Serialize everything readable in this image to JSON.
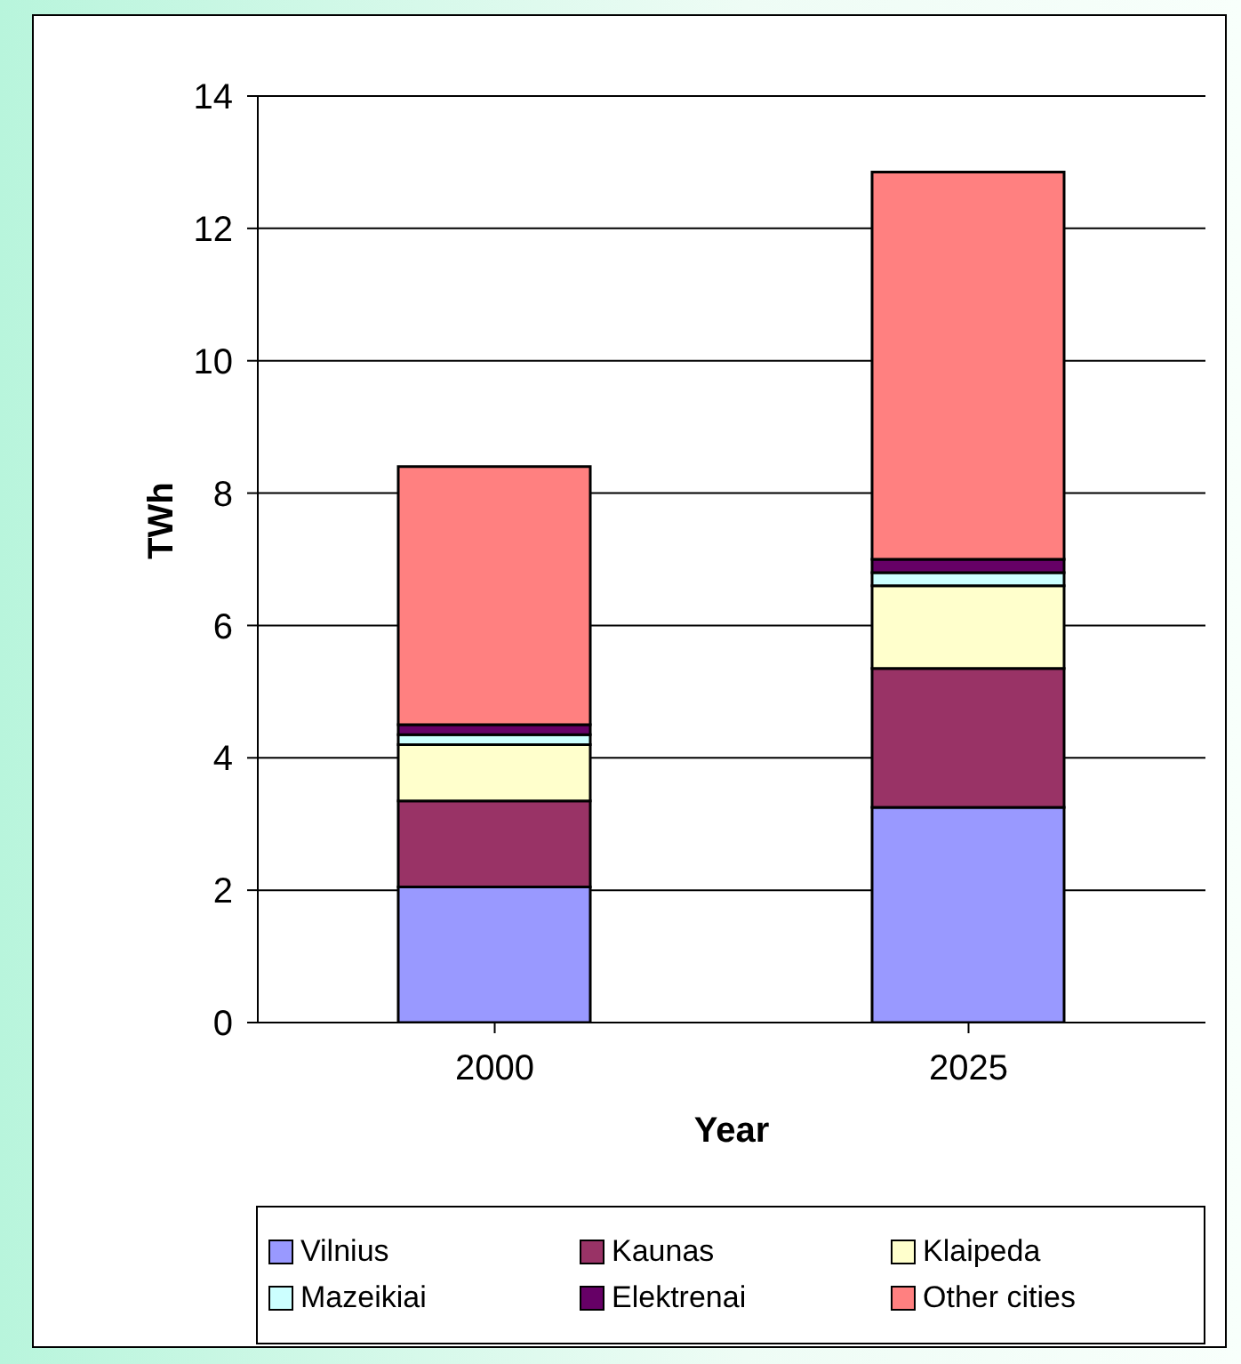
{
  "chart_data": {
    "type": "bar",
    "stacked": true,
    "xlabel": "Year",
    "ylabel": "TWh",
    "categories": [
      "2000",
      "2025"
    ],
    "series": [
      {
        "name": "Vilnius",
        "color": "#9999ff",
        "values": [
          2.05,
          3.25
        ]
      },
      {
        "name": "Kaunas",
        "color": "#993366",
        "values": [
          1.3,
          2.1
        ]
      },
      {
        "name": "Klaipeda",
        "color": "#ffffcc",
        "values": [
          0.85,
          1.25
        ]
      },
      {
        "name": "Mazeikiai",
        "color": "#ccffff",
        "values": [
          0.15,
          0.2
        ]
      },
      {
        "name": "Elektrenai",
        "color": "#660066",
        "values": [
          0.15,
          0.2
        ]
      },
      {
        "name": "Other cities",
        "color": "#ff8080",
        "values": [
          3.9,
          5.85
        ]
      }
    ],
    "ylim": [
      0,
      14
    ],
    "yticks": [
      0,
      2,
      4,
      6,
      8,
      10,
      12,
      14
    ],
    "grid": "y",
    "legend": "bottom"
  }
}
